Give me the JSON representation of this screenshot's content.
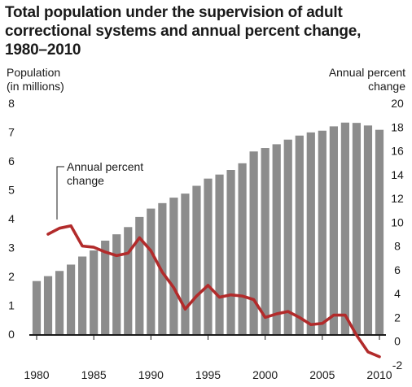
{
  "chart_data": {
    "type": "bar",
    "title_lines": [
      "Total population under the supervision of adult",
      "correctional systems and annual percent change,",
      "1980–2010"
    ],
    "left_axis_label": [
      "Population",
      "(in millions)"
    ],
    "right_axis_label": [
      "Annual percent",
      "change"
    ],
    "annotation": [
      "Annual percent",
      "change"
    ],
    "x_tick_labels": [
      "1980",
      "1985",
      "1990",
      "1995",
      "2000",
      "2005",
      "2010"
    ],
    "y_left_ticks": [
      "8",
      "7",
      "6",
      "5",
      "4",
      "3",
      "2",
      "1",
      "0"
    ],
    "y_right_ticks": [
      "20",
      "18",
      "16",
      "14",
      "12",
      "10",
      "8",
      "6",
      "4",
      "2",
      "0",
      "-2"
    ],
    "ylim_left": [
      -1.07,
      8
    ],
    "ylim_right": [
      -2,
      20
    ],
    "grid": false,
    "series": [
      {
        "type": "bar",
        "axis": "left",
        "color": "#8c8c8c",
        "x": [
          1980,
          1981,
          1982,
          1983,
          1984,
          1985,
          1986,
          1987,
          1988,
          1989,
          1990,
          1991,
          1992,
          1993,
          1994,
          1995,
          1996,
          1997,
          1998,
          1999,
          2000,
          2001,
          2002,
          2003,
          2004,
          2005,
          2006,
          2007,
          2008,
          2009,
          2010
        ],
        "values": [
          1.84,
          2.01,
          2.19,
          2.41,
          2.69,
          2.9,
          3.24,
          3.46,
          3.71,
          4.06,
          4.35,
          4.54,
          4.73,
          4.87,
          5.14,
          5.39,
          5.53,
          5.69,
          5.92,
          6.33,
          6.45,
          6.58,
          6.74,
          6.88,
          6.99,
          7.05,
          7.2,
          7.33,
          7.32,
          7.23,
          7.08
        ]
      },
      {
        "type": "line",
        "axis": "right",
        "color": "#b22b2b",
        "x": [
          1981,
          1982,
          1983,
          1984,
          1985,
          1986,
          1987,
          1988,
          1989,
          1990,
          1991,
          1992,
          1993,
          1994,
          1995,
          1996,
          1997,
          1998,
          1999,
          2000,
          2001,
          2002,
          2003,
          2004,
          2005,
          2006,
          2007,
          2008,
          2009,
          2010
        ],
        "values": [
          9.0,
          9.5,
          9.7,
          8.0,
          7.9,
          7.5,
          7.2,
          7.4,
          8.7,
          7.6,
          5.8,
          4.5,
          2.7,
          3.8,
          4.7,
          3.7,
          3.9,
          3.8,
          3.5,
          2.0,
          2.3,
          2.5,
          2.0,
          1.4,
          1.5,
          2.2,
          2.2,
          0.5,
          -0.9,
          -1.3
        ]
      }
    ]
  }
}
